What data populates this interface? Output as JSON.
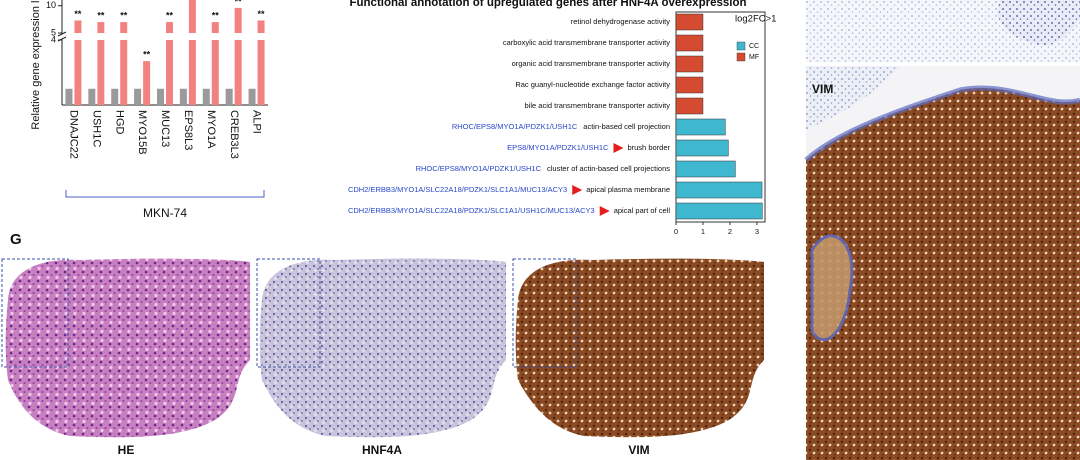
{
  "panel_label": "G",
  "image_labels": [
    "HE",
    "HNF4A",
    "VIM"
  ],
  "side_label": "VIM",
  "chart_data": [
    {
      "type": "bar",
      "y_label": "Relative gene expression le",
      "categories": [
        "DNAJC22",
        "USH1C",
        "HGD",
        "MYO15B",
        "MUC13",
        "EPS8L3",
        "MYO1A",
        "CREB3L3",
        "ALPI"
      ],
      "group_label": "MKN-74",
      "series": [
        {
          "color": "#9a9a9a",
          "values": [
            1,
            1,
            1,
            1,
            1,
            1,
            1,
            1,
            1
          ]
        },
        {
          "color": "#f2827f",
          "values": [
            7.3,
            7,
            7,
            2.7,
            7,
            12,
            7,
            9.6,
            7.3
          ],
          "annotations": [
            "**",
            "**",
            "**",
            "**",
            "**",
            null,
            "**",
            "**",
            "**"
          ]
        }
      ],
      "axis_break": true,
      "ylim": [
        0,
        4
      ],
      "yticks": [
        4
      ],
      "ylim_upper": [
        5,
        10.5
      ],
      "yticks_upper": [
        5,
        10
      ]
    },
    {
      "type": "barh",
      "title": "Functional annotation of upregulated genes after HNF4A overexpression",
      "annotation": "log2FC>1",
      "categories": [
        "retinol dehydrogenase activity",
        "carboxylic acid transmembrane transporter activity",
        "organic acid transmembrane transporter activity",
        "Rac guanyl-nucleotide exchange factor activity",
        "bile acid transmembrane transporter activity",
        "actin-based cell projection",
        "brush border",
        "cluster of actin-based cell projections",
        "apical plasma membrane",
        "apical part of cell"
      ],
      "genes": [
        null,
        null,
        null,
        null,
        null,
        "RHOC/EPS8/MYO1A/PDZK1/USH1C",
        "EPS8/MYO1A/PDZK1/USH1C",
        "RHOC/EPS8/MYO1A/PDZK1/USH1C",
        "CDH2/ERBB3/MYO1A/SLC22A18/PDZK1/SLC1A1/MUC13/ACY3",
        "CDH2/ERBB3/MYO1A/SLC22A18/PDZK1/SLC1A1/USH1C/MUC13/ACY3"
      ],
      "groups": [
        "MF",
        "MF",
        "MF",
        "MF",
        "MF",
        "CC",
        "CC",
        "CC",
        "CC",
        "CC"
      ],
      "values": [
        1,
        1,
        1,
        1,
        1,
        1.83,
        1.94,
        2.2,
        3.19,
        3.2
      ],
      "legend": [
        {
          "name": "CC",
          "color": "#3fb8cf"
        },
        {
          "name": "MF",
          "color": "#d44b32"
        }
      ],
      "xlim": [
        0,
        3.3
      ],
      "xticks": [
        0,
        1,
        2,
        3
      ]
    }
  ]
}
